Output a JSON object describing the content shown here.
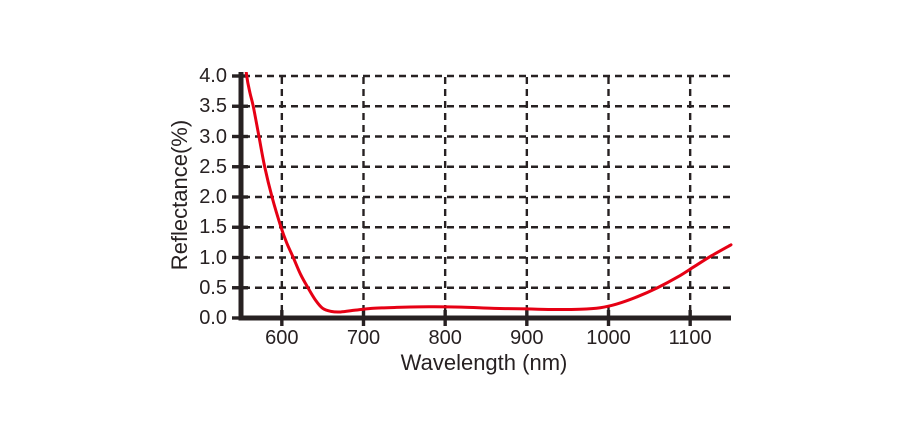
{
  "chart_data": {
    "type": "line",
    "title": "",
    "xlabel": "Wavelength (nm)",
    "ylabel": "Reflectance(%)",
    "xlim": [
      550,
      1150
    ],
    "ylim": [
      0,
      4
    ],
    "x_ticks": [
      600,
      700,
      800,
      900,
      1000,
      1100
    ],
    "x_tick_labels": [
      "600",
      "700",
      "800",
      "900",
      "1000",
      "1100"
    ],
    "y_ticks": [
      0.0,
      0.5,
      1.0,
      1.5,
      2.0,
      2.5,
      3.0,
      3.5,
      4.0
    ],
    "y_tick_labels": [
      "0.0",
      "0.5",
      "1.0",
      "1.5",
      "2.0",
      "2.5",
      "3.0",
      "3.5",
      "4.0"
    ],
    "grid": "dashed",
    "legend": "none",
    "axis_color": "#272122",
    "background_color": "#ffffff",
    "series": [
      {
        "name": "reflectance",
        "color": "#e60014",
        "points": [
          [
            553,
            4.5
          ],
          [
            557,
            4.0
          ],
          [
            561,
            3.72
          ],
          [
            565,
            3.5
          ],
          [
            572,
            3.0
          ],
          [
            579,
            2.5
          ],
          [
            588,
            2.0
          ],
          [
            599,
            1.5
          ],
          [
            606,
            1.24
          ],
          [
            614,
            1.0
          ],
          [
            623,
            0.72
          ],
          [
            632,
            0.5
          ],
          [
            641,
            0.3
          ],
          [
            650,
            0.16
          ],
          [
            660,
            0.11
          ],
          [
            672,
            0.1
          ],
          [
            690,
            0.13
          ],
          [
            710,
            0.16
          ],
          [
            740,
            0.175
          ],
          [
            780,
            0.185
          ],
          [
            820,
            0.18
          ],
          [
            860,
            0.16
          ],
          [
            900,
            0.15
          ],
          [
            935,
            0.14
          ],
          [
            965,
            0.145
          ],
          [
            990,
            0.17
          ],
          [
            1010,
            0.23
          ],
          [
            1035,
            0.35
          ],
          [
            1060,
            0.5
          ],
          [
            1085,
            0.68
          ],
          [
            1105,
            0.85
          ],
          [
            1125,
            1.02
          ],
          [
            1150,
            1.21
          ]
        ]
      }
    ]
  }
}
